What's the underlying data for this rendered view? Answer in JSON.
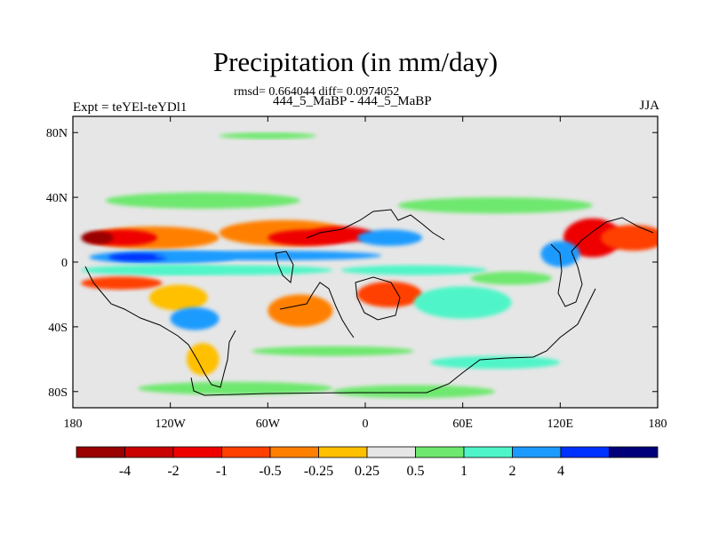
{
  "title": "Precipitation (in mm/day)",
  "stats_line": "rmsd= 0.664044 diff= 0.0974052",
  "case_line": "444_5_MaBP - 444_5_MaBP",
  "experiment_label": "Expt = teYEl-teYDl1",
  "season_label": "JJA",
  "map": {
    "projection": "cylindrical equidistant",
    "lon_range": [
      -180,
      180
    ],
    "lat_range": [
      -90,
      90
    ],
    "lon_ticks": [
      {
        "lon": -180,
        "label": "180"
      },
      {
        "lon": -120,
        "label": "120W"
      },
      {
        "lon": -60,
        "label": "60W"
      },
      {
        "lon": 0,
        "label": "0"
      },
      {
        "lon": 60,
        "label": "60E"
      },
      {
        "lon": 120,
        "label": "120E"
      },
      {
        "lon": 180,
        "label": "180"
      }
    ],
    "lat_ticks": [
      {
        "lat": 80,
        "label": "80N"
      },
      {
        "lat": 40,
        "label": "40N"
      },
      {
        "lat": 0,
        "label": "0"
      },
      {
        "lat": -40,
        "label": "40S"
      },
      {
        "lat": -80,
        "label": "80S"
      }
    ],
    "background_color": "#e6e6e6",
    "field_blobs": [
      {
        "lon": -130,
        "lat": 15,
        "rlon": 40,
        "rlat": 7,
        "color": "#ff8000"
      },
      {
        "lon": -150,
        "lat": 15,
        "rlon": 22,
        "rlat": 5,
        "color": "#ee0000"
      },
      {
        "lon": -165,
        "lat": 15,
        "rlon": 10,
        "rlat": 4,
        "color": "#990000"
      },
      {
        "lon": -125,
        "lat": 3,
        "rlon": 45,
        "rlat": 4,
        "color": "#1b9bff"
      },
      {
        "lon": -140,
        "lat": 3,
        "rlon": 18,
        "rlat": 2.5,
        "color": "#0032ff"
      },
      {
        "lon": -130,
        "lat": -5,
        "rlon": 45,
        "rlat": 3,
        "color": "#4ff5c8"
      },
      {
        "lon": -150,
        "lat": -13,
        "rlon": 25,
        "rlat": 4,
        "color": "#ff4000"
      },
      {
        "lon": -50,
        "lat": 18,
        "rlon": 40,
        "rlat": 8,
        "color": "#ff8000"
      },
      {
        "lon": -35,
        "lat": 15,
        "rlon": 25,
        "rlat": 5,
        "color": "#ee0000"
      },
      {
        "lon": -15,
        "lat": 17,
        "rlon": 20,
        "rlat": 5,
        "color": "#ee0000"
      },
      {
        "lon": 15,
        "lat": 15,
        "rlon": 20,
        "rlat": 5,
        "color": "#1b9bff"
      },
      {
        "lon": -60,
        "lat": 4,
        "rlon": 70,
        "rlat": 3,
        "color": "#1b9bff"
      },
      {
        "lon": -80,
        "lat": -5,
        "rlon": 60,
        "rlat": 3,
        "color": "#4ff5c8"
      },
      {
        "lon": 30,
        "lat": -5,
        "rlon": 45,
        "rlat": 3,
        "color": "#4ff5c8"
      },
      {
        "lon": -115,
        "lat": -22,
        "rlon": 18,
        "rlat": 8,
        "color": "#ffc000"
      },
      {
        "lon": -105,
        "lat": -35,
        "rlon": 15,
        "rlat": 7,
        "color": "#1b9bff"
      },
      {
        "lon": -40,
        "lat": -30,
        "rlon": 20,
        "rlat": 10,
        "color": "#ff8000"
      },
      {
        "lon": 15,
        "lat": -20,
        "rlon": 20,
        "rlat": 8,
        "color": "#ff4000"
      },
      {
        "lon": 60,
        "lat": -25,
        "rlon": 30,
        "rlat": 10,
        "color": "#4ff5c8"
      },
      {
        "lon": 90,
        "lat": -10,
        "rlon": 25,
        "rlat": 4,
        "color": "#6ee86e"
      },
      {
        "lon": 140,
        "lat": 15,
        "rlon": 18,
        "rlat": 12,
        "color": "#ee0000"
      },
      {
        "lon": 165,
        "lat": 15,
        "rlon": 20,
        "rlat": 8,
        "color": "#ff4000"
      },
      {
        "lon": 120,
        "lat": 5,
        "rlon": 12,
        "rlat": 8,
        "color": "#1b9bff"
      },
      {
        "lon": -100,
        "lat": 38,
        "rlon": 60,
        "rlat": 5,
        "color": "#6ee86e"
      },
      {
        "lon": 80,
        "lat": 35,
        "rlon": 60,
        "rlat": 5,
        "color": "#6ee86e"
      },
      {
        "lon": -60,
        "lat": 78,
        "rlon": 30,
        "rlat": 2,
        "color": "#6ee86e"
      },
      {
        "lon": -20,
        "lat": -55,
        "rlon": 50,
        "rlat": 3,
        "color": "#6ee86e"
      },
      {
        "lon": 80,
        "lat": -62,
        "rlon": 40,
        "rlat": 4,
        "color": "#4ff5c8"
      },
      {
        "lon": -80,
        "lat": -78,
        "rlon": 60,
        "rlat": 4,
        "color": "#6ee86e"
      },
      {
        "lon": 30,
        "lat": -80,
        "rlon": 50,
        "rlat": 4,
        "color": "#6ee86e"
      },
      {
        "lon": -100,
        "lat": -60,
        "rlon": 10,
        "rlat": 10,
        "color": "#ffc000"
      }
    ]
  },
  "colorbar": {
    "colors": [
      "#990000",
      "#c80000",
      "#ee0000",
      "#ff4000",
      "#ff8000",
      "#ffc000",
      "#e6e6e6",
      "#6ee86e",
      "#4ff5c8",
      "#1b9bff",
      "#0032ff",
      "#00007a"
    ],
    "labels": [
      "-4",
      "-2",
      "-1",
      "-0.5",
      "-0.25",
      "0.25",
      "0.5",
      "1",
      "2",
      "4"
    ],
    "label_indices": [
      1,
      2,
      3,
      4,
      5,
      6,
      7,
      8,
      9,
      10
    ]
  }
}
